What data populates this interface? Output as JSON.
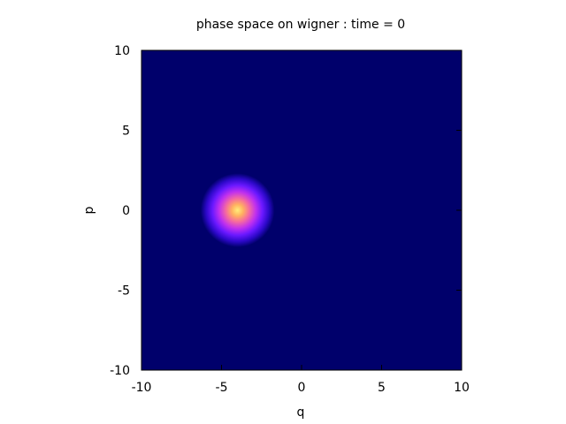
{
  "chart_data": {
    "type": "heatmap",
    "title": "phase space on wigner : time = 0",
    "xlabel": "q",
    "ylabel": "p",
    "xlim": [
      -10,
      10
    ],
    "ylim": [
      -10,
      10
    ],
    "xticks": [
      -10,
      -5,
      0,
      5,
      10
    ],
    "yticks": [
      -10,
      -5,
      0,
      5,
      10
    ],
    "x_tick_labels": [
      "-10",
      "-5",
      "0",
      "5",
      "10"
    ],
    "y_tick_labels": [
      "-10",
      "-5",
      "0",
      "5",
      "10"
    ],
    "grid": false,
    "colormap": "gnuplot-rgbformulae-7-5-15",
    "background_color": "#00006b",
    "peak": {
      "q": -4,
      "p": 0,
      "sigma": 0.7,
      "color": "#ffe866"
    }
  }
}
